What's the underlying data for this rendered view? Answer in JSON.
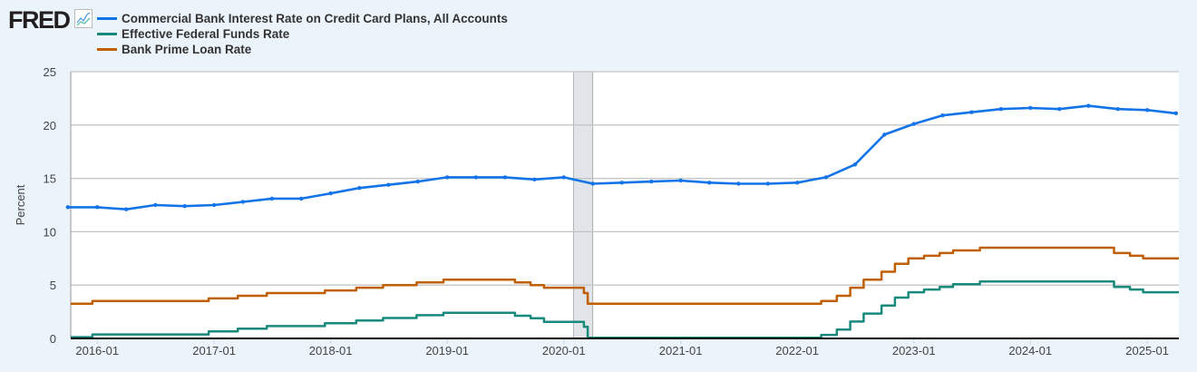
{
  "header": {
    "logo": "FRED"
  },
  "chart_data": {
    "type": "line",
    "ylabel": "Percent",
    "ylim": [
      0,
      25
    ],
    "yticks": [
      0,
      5,
      10,
      15,
      20,
      25
    ],
    "xlim": [
      "2015-10-10",
      "2025-04-10"
    ],
    "xticks": [
      "2016-01",
      "2017-01",
      "2018-01",
      "2019-01",
      "2020-01",
      "2021-01",
      "2022-01",
      "2023-01",
      "2024-01",
      "2025-01"
    ],
    "grid": true,
    "legend_placement": "top-left",
    "recessions": [
      [
        "2020-02-01",
        "2020-04-01"
      ]
    ],
    "series": [
      {
        "name": "Commercial Bank Interest Rate on Credit Card Plans, All Accounts",
        "color": "#1374e8",
        "style": "line-markers",
        "x": [
          "2015-10",
          "2016-01",
          "2016-04",
          "2016-07",
          "2016-10",
          "2017-01",
          "2017-04",
          "2017-07",
          "2017-10",
          "2018-01",
          "2018-04",
          "2018-07",
          "2018-10",
          "2019-01",
          "2019-04",
          "2019-07",
          "2019-10",
          "2020-01",
          "2020-04",
          "2020-07",
          "2020-10",
          "2021-01",
          "2021-04",
          "2021-07",
          "2021-10",
          "2022-01",
          "2022-04",
          "2022-07",
          "2022-10",
          "2023-01",
          "2023-04",
          "2023-07",
          "2023-10",
          "2024-01",
          "2024-04",
          "2024-07",
          "2024-10",
          "2025-01",
          "2025-04"
        ],
        "y": [
          12.3,
          12.3,
          12.1,
          12.5,
          12.4,
          12.5,
          12.8,
          13.1,
          13.1,
          13.6,
          14.1,
          14.4,
          14.7,
          15.1,
          15.1,
          15.1,
          14.9,
          15.1,
          14.5,
          14.6,
          14.7,
          14.8,
          14.6,
          14.5,
          14.5,
          14.6,
          15.1,
          16.3,
          19.1,
          20.1,
          20.9,
          21.2,
          21.5,
          21.6,
          21.5,
          21.8,
          21.5,
          21.4,
          21.1
        ]
      },
      {
        "name": "Effective Federal Funds Rate",
        "color": "#178a7c",
        "style": "step",
        "x": [
          "2015-10-10",
          "2015-12-17",
          "2016-12-15",
          "2017-03-16",
          "2017-06-15",
          "2017-12-14",
          "2018-03-22",
          "2018-06-14",
          "2018-09-27",
          "2018-12-20",
          "2019-08-01",
          "2019-09-19",
          "2019-10-31",
          "2020-03-04",
          "2020-03-16",
          "2022-03-17",
          "2022-05-05",
          "2022-06-16",
          "2022-07-28",
          "2022-09-22",
          "2022-11-03",
          "2022-12-15",
          "2023-02-02",
          "2023-03-23",
          "2023-05-04",
          "2023-07-27",
          "2024-09-19",
          "2024-11-08",
          "2024-12-19"
        ],
        "y": [
          0.12,
          0.37,
          0.66,
          0.91,
          1.16,
          1.42,
          1.68,
          1.91,
          2.18,
          2.4,
          2.13,
          1.9,
          1.55,
          1.1,
          0.07,
          0.33,
          0.83,
          1.58,
          2.33,
          3.08,
          3.83,
          4.33,
          4.58,
          4.83,
          5.08,
          5.33,
          4.83,
          4.58,
          4.33
        ]
      },
      {
        "name": "Bank Prime Loan Rate",
        "color": "#c05f00",
        "style": "step",
        "x": [
          "2015-10-10",
          "2015-12-17",
          "2016-12-15",
          "2017-03-16",
          "2017-06-15",
          "2017-12-14",
          "2018-03-22",
          "2018-06-14",
          "2018-09-27",
          "2018-12-20",
          "2019-08-01",
          "2019-09-19",
          "2019-10-31",
          "2020-03-04",
          "2020-03-16",
          "2022-03-17",
          "2022-05-05",
          "2022-06-16",
          "2022-07-28",
          "2022-09-22",
          "2022-11-03",
          "2022-12-15",
          "2023-02-02",
          "2023-03-23",
          "2023-05-04",
          "2023-07-27",
          "2024-09-19",
          "2024-11-08",
          "2024-12-19"
        ],
        "y": [
          3.25,
          3.5,
          3.75,
          4.0,
          4.25,
          4.5,
          4.75,
          5.0,
          5.25,
          5.5,
          5.25,
          5.0,
          4.75,
          4.25,
          3.25,
          3.5,
          4.0,
          4.75,
          5.5,
          6.25,
          7.0,
          7.5,
          7.75,
          8.0,
          8.25,
          8.5,
          8.0,
          7.75,
          7.5
        ]
      }
    ]
  }
}
